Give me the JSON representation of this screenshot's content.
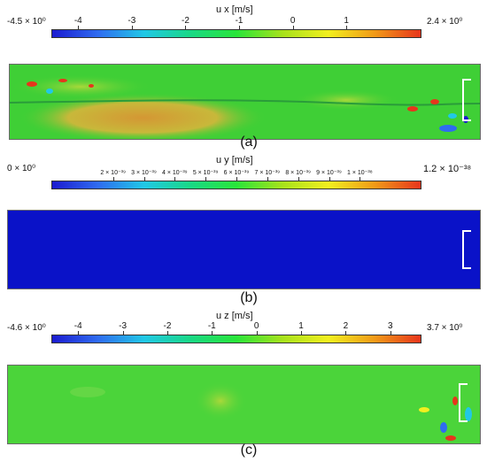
{
  "panels": [
    {
      "caption": "(a)",
      "title": "u x  [m/s]",
      "min_label": "-4.5 × 10⁰",
      "max_label": "2.4 × 10⁰",
      "ticks": [
        "-4",
        "-3",
        "-2",
        "-1",
        "0",
        "1"
      ],
      "tick_values": [
        -4,
        -3,
        -2,
        -1,
        0,
        1
      ],
      "range": [
        -4.5,
        2.4
      ],
      "colormap": [
        "#1b1bd0",
        "#2f6cf0",
        "#21c8e6",
        "#19d886",
        "#29e53a",
        "#a7e21c",
        "#f2ef1f",
        "#f19a18",
        "#e7351c"
      ]
    },
    {
      "caption": "(b)",
      "title": "u y  [m/s]",
      "min_label": "0 × 10⁰",
      "max_label": "1.2 × 10⁻³⁸",
      "ticks": [
        "2 × 10⁻³⁹",
        "3 × 10⁻³⁹",
        "4 × 10⁻³⁹",
        "5 × 10⁻³⁹",
        "6 × 10⁻³⁹",
        "7 × 10⁻³⁹",
        "8 × 10⁻³⁹",
        "9 × 10⁻³⁹",
        "1 × 10⁻³⁸"
      ],
      "tick_values": [
        2,
        3,
        4,
        5,
        6,
        7,
        8,
        9,
        10
      ],
      "range": [
        0,
        12
      ],
      "colormap": [
        "#1b1bd0",
        "#2f6cf0",
        "#21c8e6",
        "#19d886",
        "#29e53a",
        "#a7e21c",
        "#f2ef1f",
        "#f19a18",
        "#e7351c"
      ]
    },
    {
      "caption": "(c)",
      "title": "u z  [m/s]",
      "min_label": "-4.6 × 10⁰",
      "max_label": "3.7 × 10⁰",
      "ticks": [
        "-4",
        "-3",
        "-2",
        "-1",
        "0",
        "1",
        "2",
        "3"
      ],
      "tick_values": [
        -4,
        -3,
        -2,
        -1,
        0,
        1,
        2,
        3
      ],
      "range": [
        -4.6,
        3.7
      ],
      "colormap": [
        "#1b1bd0",
        "#2f6cf0",
        "#21c8e6",
        "#19d886",
        "#29e53a",
        "#a7e21c",
        "#f2ef1f",
        "#f19a18",
        "#e7351c"
      ]
    }
  ],
  "colors": {
    "field_a_base": "#3fcf36",
    "field_a_warm": "#d8a23a",
    "field_b": "#0a12c8",
    "field_c": "#4bd43a"
  }
}
